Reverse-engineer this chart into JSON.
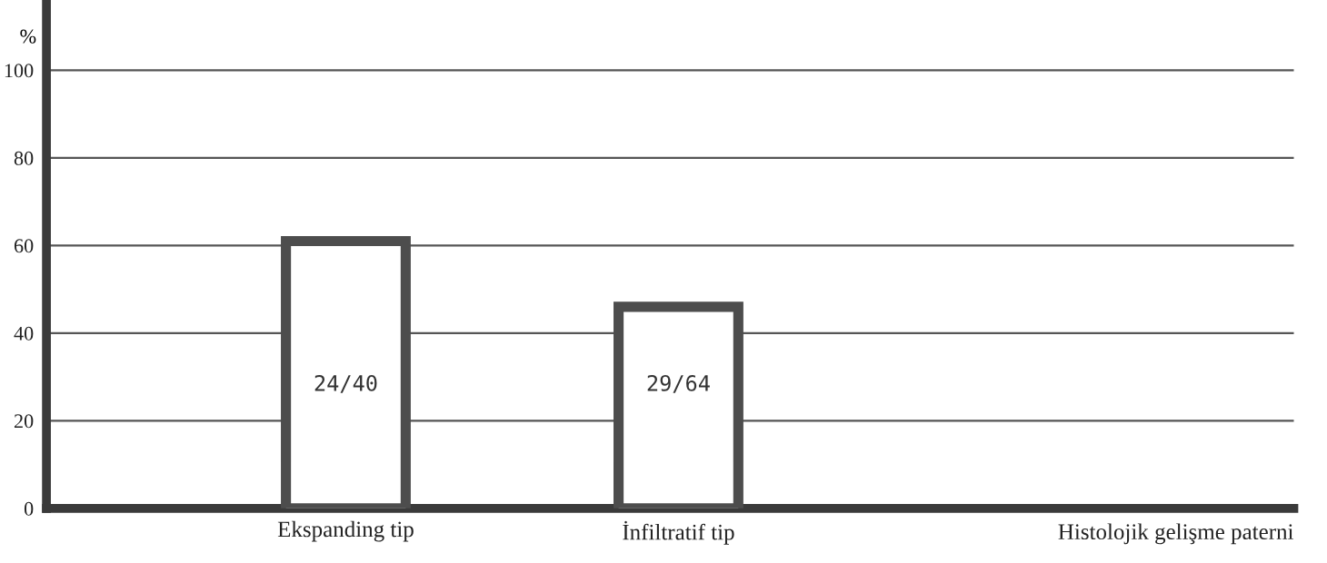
{
  "chart_data": {
    "type": "bar",
    "annotations": [
      "Histolojik gelişme paterni"
    ],
    "ylabel": "%",
    "categories": [
      "Ekspanding tip",
      "İnfiltratif tip"
    ],
    "values": [
      61,
      46
    ],
    "color": "#4d4d4d",
    "value_labels": [
      "24/40",
      "29/64"
    ],
    "ylim": [
      0,
      115
    ],
    "yticks": [
      0,
      20,
      40,
      60,
      80,
      100
    ],
    "grid": "y",
    "legend": false
  }
}
